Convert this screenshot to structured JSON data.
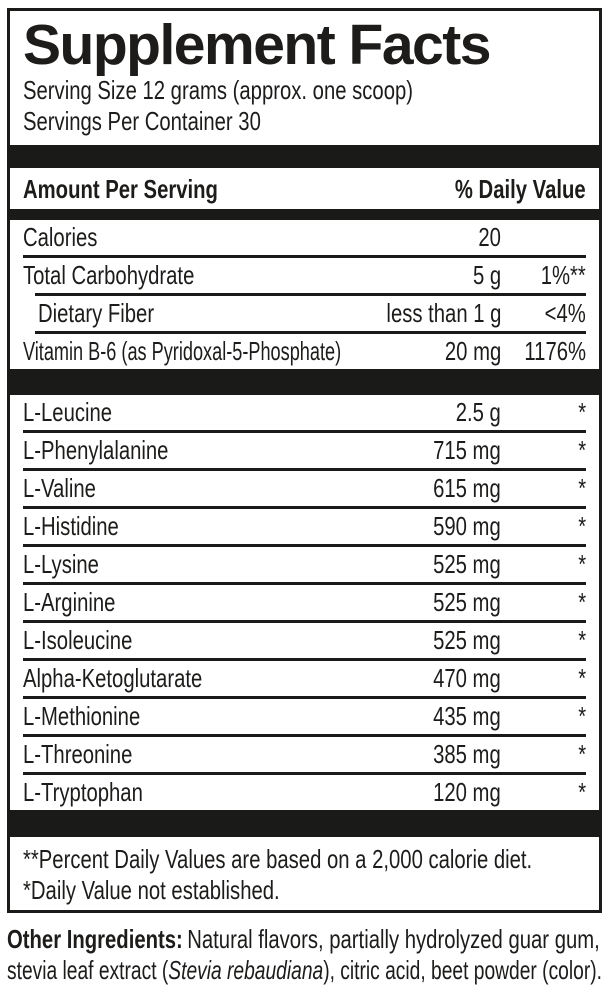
{
  "title": "Supplement Facts",
  "serving": {
    "size": "Serving Size 12 grams (approx. one scoop)",
    "per_container": "Servings Per Container 30"
  },
  "table": {
    "amount_header": "Amount Per Serving",
    "dv_header": "% Daily Value",
    "nutrients": [
      {
        "name": "Calories",
        "amount": "20",
        "dv": ""
      },
      {
        "name": "Total Carbohydrate",
        "amount": "5 g",
        "dv": "1%**"
      },
      {
        "name": "Dietary Fiber",
        "amount": "less than 1 g",
        "dv": "<4%"
      },
      {
        "name": "Vitamin B-6 (as Pyridoxal-5-Phosphate)",
        "amount": "20 mg",
        "dv": "1176%"
      }
    ],
    "amino_acids": [
      {
        "name": "L-Leucine",
        "amount": "2.5 g",
        "dv": "*"
      },
      {
        "name": "L-Phenylalanine",
        "amount": "715 mg",
        "dv": "*"
      },
      {
        "name": "L-Valine",
        "amount": "615 mg",
        "dv": "*"
      },
      {
        "name": "L-Histidine",
        "amount": "590 mg",
        "dv": "*"
      },
      {
        "name": "L-Lysine",
        "amount": "525 mg",
        "dv": "*"
      },
      {
        "name": "L-Arginine",
        "amount": "525 mg",
        "dv": "*"
      },
      {
        "name": "L-Isoleucine",
        "amount": "525 mg",
        "dv": "*"
      },
      {
        "name": "Alpha-Ketoglutarate",
        "amount": "470 mg",
        "dv": "*"
      },
      {
        "name": "L-Methionine",
        "amount": "435 mg",
        "dv": "*"
      },
      {
        "name": "L-Threonine",
        "amount": "385 mg",
        "dv": "*"
      },
      {
        "name": "L-Tryptophan",
        "amount": "120 mg",
        "dv": "*"
      }
    ]
  },
  "footnotes": {
    "daily_values": "**Percent Daily Values are based on a 2,000 calorie diet.",
    "not_established": "*Daily Value not established."
  },
  "other_ingredients": {
    "label": "Other Ingredients:",
    "line1_rest": "Natural flavors, partially hydrolyzed guar gum,",
    "line2_pre": "stevia leaf extract (",
    "line2_italic": "Stevia rebaudiana",
    "line2_post": "), citric acid, beet powder (color)."
  },
  "colors": {
    "text": "#1d1c1a",
    "bar": "#1a1a18",
    "background": "#ffffff"
  }
}
